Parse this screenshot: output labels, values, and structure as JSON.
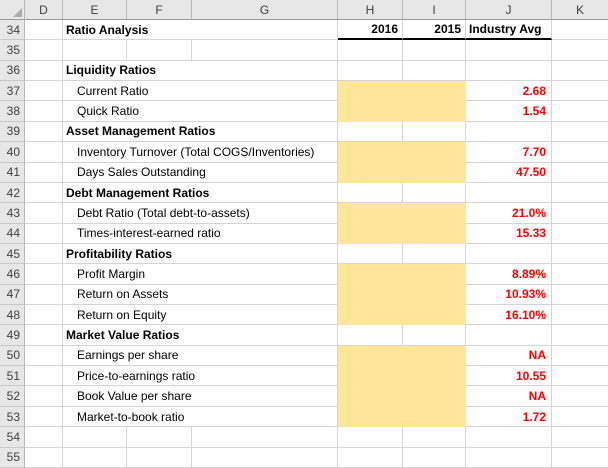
{
  "sheet": {
    "columns": [
      "D",
      "E",
      "F",
      "G",
      "H",
      "I",
      "J",
      "K"
    ],
    "colors": {
      "highlight_yellow": "#FFE699",
      "value_red": "#FF0000",
      "gridline": "#D4D4D4",
      "header_bg": "#E7E7E7",
      "thick_border": "#000000"
    },
    "header": {
      "col_2016": "2016",
      "col_2015": "2015",
      "col_industry": "Industry Avg"
    },
    "rows": [
      {
        "num": "34",
        "label": "Ratio Analysis",
        "type": "title"
      },
      {
        "num": "35",
        "label": "",
        "type": "blank"
      },
      {
        "num": "36",
        "label": "Liquidity Ratios",
        "type": "section"
      },
      {
        "num": "37",
        "label": "Current Ratio",
        "type": "item",
        "value": "2.68",
        "highlighted": true
      },
      {
        "num": "38",
        "label": "Quick Ratio",
        "type": "item",
        "value": "1.54",
        "highlighted": true
      },
      {
        "num": "39",
        "label": "Asset Management Ratios",
        "type": "section"
      },
      {
        "num": "40",
        "label": "Inventory Turnover (Total COGS/Inventories)",
        "type": "item",
        "value": "7.70",
        "highlighted": true
      },
      {
        "num": "41",
        "label": "Days Sales Outstanding",
        "type": "item",
        "value": "47.50",
        "highlighted": true
      },
      {
        "num": "42",
        "label": "Debt Management Ratios",
        "type": "section"
      },
      {
        "num": "43",
        "label": "Debt Ratio (Total debt-to-assets)",
        "type": "item",
        "value": "21.0%",
        "highlighted": true
      },
      {
        "num": "44",
        "label": "Times-interest-earned ratio",
        "type": "item",
        "value": "15.33",
        "highlighted": true
      },
      {
        "num": "45",
        "label": "Profitability Ratios",
        "type": "section"
      },
      {
        "num": "46",
        "label": "Profit Margin",
        "type": "item",
        "value": "8.89%",
        "highlighted": true
      },
      {
        "num": "47",
        "label": "Return on Assets",
        "type": "item",
        "value": "10.93%",
        "highlighted": true
      },
      {
        "num": "48",
        "label": "Return on Equity",
        "type": "item",
        "value": "16.10%",
        "highlighted": true
      },
      {
        "num": "49",
        "label": "Market Value Ratios",
        "type": "section"
      },
      {
        "num": "50",
        "label": "Earnings per share",
        "type": "item",
        "value": "NA",
        "highlighted": true
      },
      {
        "num": "51",
        "label": "Price-to-earnings ratio",
        "type": "item",
        "value": "10.55",
        "highlighted": true
      },
      {
        "num": "52",
        "label": "Book Value per share",
        "type": "item",
        "value": "NA",
        "highlighted": true
      },
      {
        "num": "53",
        "label": "Market-to-book ratio",
        "type": "item",
        "value": "1.72",
        "highlighted": true
      },
      {
        "num": "54",
        "label": "",
        "type": "blank"
      },
      {
        "num": "55",
        "label": "",
        "type": "blank"
      }
    ]
  }
}
